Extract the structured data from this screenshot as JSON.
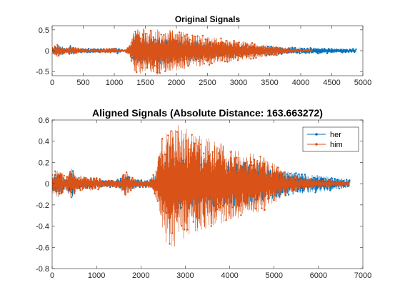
{
  "colors": {
    "her": "#0072BD",
    "him": "#D95319",
    "axis": "#262626"
  },
  "chart_data": [
    {
      "id": "original",
      "type": "line",
      "title": "Original Signals",
      "xlabel": "",
      "ylabel": "",
      "xlim": [
        0,
        5000
      ],
      "ylim": [
        -0.6,
        0.6
      ],
      "xticks": [
        0,
        500,
        1000,
        1500,
        2000,
        2500,
        3000,
        3500,
        4000,
        4500,
        5000
      ],
      "yticks": [
        -0.5,
        0,
        0.5
      ],
      "ytick_labels": [
        "-0.5",
        "0",
        "0.5"
      ],
      "grid": false,
      "legend": null,
      "series": [
        {
          "name": "her",
          "color": "#0072BD",
          "marker": "dot",
          "length": 4890,
          "envelope": [
            [
              0,
              0.06
            ],
            [
              120,
              0.14
            ],
            [
              230,
              0.05
            ],
            [
              300,
              0.12
            ],
            [
              380,
              0.04
            ],
            [
              600,
              0.05
            ],
            [
              900,
              0.04
            ],
            [
              1000,
              0.04
            ],
            [
              1060,
              0.07
            ],
            [
              1100,
              0.03
            ],
            [
              1150,
              0.02
            ],
            [
              1240,
              0.06
            ],
            [
              1280,
              0.22
            ],
            [
              1360,
              0.28
            ],
            [
              1500,
              0.3
            ],
            [
              1800,
              0.3
            ],
            [
              2200,
              0.25
            ],
            [
              2600,
              0.18
            ],
            [
              3000,
              0.14
            ],
            [
              3500,
              0.1
            ],
            [
              4000,
              0.08
            ],
            [
              4400,
              0.07
            ],
            [
              4700,
              0.05
            ],
            [
              4890,
              0.04
            ]
          ]
        },
        {
          "name": "him",
          "color": "#D95319",
          "marker": "dot",
          "length": 4180,
          "envelope": [
            [
              0,
              0.08
            ],
            [
              80,
              0.15
            ],
            [
              200,
              0.06
            ],
            [
              320,
              0.12
            ],
            [
              450,
              0.05
            ],
            [
              550,
              0.04
            ],
            [
              800,
              0.04
            ],
            [
              1000,
              0.05
            ],
            [
              1060,
              0.02
            ],
            [
              1120,
              0.01
            ],
            [
              1180,
              0.02
            ],
            [
              1250,
              0.15
            ],
            [
              1300,
              0.45
            ],
            [
              1380,
              0.6
            ],
            [
              1450,
              0.55
            ],
            [
              1550,
              0.5
            ],
            [
              1700,
              0.58
            ],
            [
              1800,
              0.52
            ],
            [
              2000,
              0.48
            ],
            [
              2200,
              0.42
            ],
            [
              2500,
              0.35
            ],
            [
              2800,
              0.28
            ],
            [
              3100,
              0.22
            ],
            [
              3400,
              0.15
            ],
            [
              3600,
              0.12
            ],
            [
              3800,
              0.05
            ],
            [
              4000,
              0.02
            ],
            [
              4180,
              0.02
            ]
          ]
        }
      ]
    },
    {
      "id": "aligned",
      "type": "line",
      "title": "Aligned Signals (Absolute Distance: 163.663272)",
      "xlabel": "",
      "ylabel": "",
      "xlim": [
        0,
        7000
      ],
      "ylim": [
        -0.8,
        0.6
      ],
      "xticks": [
        0,
        1000,
        2000,
        3000,
        4000,
        5000,
        6000,
        7000
      ],
      "yticks": [
        -0.8,
        -0.6,
        -0.4,
        -0.2,
        0,
        0.2,
        0.4,
        0.6
      ],
      "ytick_labels": [
        "-0.8",
        "-0.6",
        "-0.4",
        "-0.2",
        "0",
        "0.2",
        "0.4",
        "0.6"
      ],
      "grid": false,
      "legend": "top-right",
      "series": [
        {
          "name": "her",
          "color": "#0072BD",
          "marker": "dot",
          "length": 6700,
          "envelope": [
            [
              0,
              0.06
            ],
            [
              150,
              0.12
            ],
            [
              300,
              0.05
            ],
            [
              450,
              0.14
            ],
            [
              550,
              0.06
            ],
            [
              800,
              0.05
            ],
            [
              1000,
              0.04
            ],
            [
              1200,
              0.03
            ],
            [
              1500,
              0.04
            ],
            [
              1650,
              0.1
            ],
            [
              1750,
              0.06
            ],
            [
              1900,
              0.04
            ],
            [
              2200,
              0.03
            ],
            [
              2450,
              0.12
            ],
            [
              2600,
              0.25
            ],
            [
              3000,
              0.25
            ],
            [
              3500,
              0.24
            ],
            [
              4000,
              0.22
            ],
            [
              4500,
              0.2
            ],
            [
              5000,
              0.14
            ],
            [
              5500,
              0.1
            ],
            [
              6000,
              0.08
            ],
            [
              6500,
              0.05
            ],
            [
              6700,
              0.04
            ]
          ]
        },
        {
          "name": "him",
          "color": "#D95319",
          "marker": "dot",
          "length": 6700,
          "envelope": [
            [
              0,
              0.1
            ],
            [
              150,
              0.14
            ],
            [
              300,
              0.06
            ],
            [
              450,
              0.15
            ],
            [
              550,
              0.08
            ],
            [
              800,
              0.07
            ],
            [
              1000,
              0.06
            ],
            [
              1200,
              0.03
            ],
            [
              1500,
              0.04
            ],
            [
              1650,
              0.12
            ],
            [
              1750,
              0.07
            ],
            [
              1900,
              0.04
            ],
            [
              2200,
              0.03
            ],
            [
              2350,
              0.15
            ],
            [
              2450,
              0.4
            ],
            [
              2550,
              0.6
            ],
            [
              2700,
              0.62
            ],
            [
              2900,
              0.55
            ],
            [
              3200,
              0.48
            ],
            [
              3600,
              0.42
            ],
            [
              4000,
              0.35
            ],
            [
              4400,
              0.3
            ],
            [
              4800,
              0.26
            ],
            [
              5200,
              0.12
            ],
            [
              5600,
              0.06
            ],
            [
              6000,
              0.04
            ],
            [
              6400,
              0.03
            ],
            [
              6700,
              0.02
            ]
          ]
        }
      ]
    }
  ]
}
